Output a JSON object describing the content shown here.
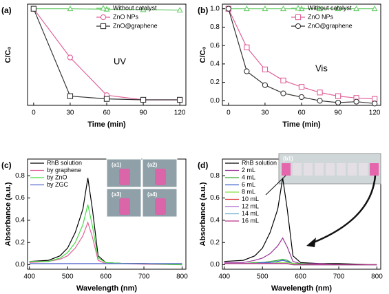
{
  "chart_data": [
    {
      "type": "line",
      "panel_label": "(a)",
      "xlabel": "Time (min)",
      "ylabel": "C/C₀",
      "x": [
        0,
        30,
        60,
        90,
        120
      ],
      "xlim": [
        -5,
        125
      ],
      "xticks": [
        0,
        30,
        60,
        90,
        120
      ],
      "ylim": [
        -0.05,
        1.05
      ],
      "legend": "upper right",
      "annotations": [
        "UV"
      ],
      "series": [
        {
          "name": "Without catalyst",
          "color": "#66cc66",
          "marker": "triangle",
          "values": [
            1.0,
            1.0,
            0.995,
            0.99,
            0.985
          ]
        },
        {
          "name": "ZnO NPs",
          "color": "#e0609a",
          "marker": "circle",
          "values": [
            1.0,
            0.47,
            0.06,
            0.01,
            0.01
          ]
        },
        {
          "name": "ZnO@graphene",
          "color": "#333333",
          "marker": "square",
          "values": [
            1.0,
            0.05,
            0.02,
            0.01,
            0.01
          ]
        }
      ]
    },
    {
      "type": "line",
      "panel_label": "(b)",
      "xlabel": "Time (min)",
      "ylabel": "C/C₀",
      "x": [
        0,
        15,
        30,
        45,
        60,
        75,
        90,
        105,
        120
      ],
      "xlim": [
        -5,
        125
      ],
      "xticks": [
        0,
        30,
        60,
        90,
        120
      ],
      "ylim": [
        -0.05,
        1.05
      ],
      "yticks": [
        {
          "value": 0,
          "label": "0.0"
        },
        0.2,
        0.4,
        0.6,
        0.8,
        {
          "value": 1,
          "label": "1.0"
        }
      ],
      "legend": "upper right",
      "annotations": [
        "Vis"
      ],
      "series": [
        {
          "name": "Without catalyst",
          "color": "#66cc66",
          "marker": "triangle",
          "values": [
            1.0,
            1.0,
            1.0,
            1.0,
            1.0,
            1.0,
            1.0,
            1.0,
            1.0
          ]
        },
        {
          "name": "ZnO NPs",
          "color": "#e0609a",
          "marker": "square",
          "values": [
            1.0,
            0.58,
            0.34,
            0.22,
            0.15,
            0.09,
            0.05,
            0.03,
            0.02
          ]
        },
        {
          "name": "ZnO@graphene",
          "color": "#333333",
          "marker": "circle",
          "values": [
            1.0,
            0.32,
            0.17,
            0.08,
            0.04,
            0.0,
            -0.02,
            -0.01,
            -0.03
          ]
        }
      ]
    },
    {
      "type": "line",
      "panel_label": "(c)",
      "xlabel": "Wavelength (nm)",
      "ylabel": "Absorbance (a.u.)",
      "x": [
        400,
        450,
        480,
        500,
        520,
        540,
        553,
        565,
        580,
        600,
        650,
        700,
        800
      ],
      "xlim": [
        395,
        810
      ],
      "xticks": [
        400,
        500,
        600,
        700,
        800
      ],
      "ylim": [
        -0.04,
        0.95
      ],
      "yticks": [
        {
          "value": 0,
          "label": "0.0"
        },
        0.2,
        0.4,
        0.6,
        0.8
      ],
      "legend": "upper left",
      "annotations": [
        "(a1)",
        "(a2)",
        "(a3)",
        "(a4)"
      ],
      "series": [
        {
          "name": "RhB solution",
          "color": "#000000",
          "values": [
            0.03,
            0.04,
            0.08,
            0.15,
            0.29,
            0.5,
            0.78,
            0.5,
            0.08,
            0.02,
            0.01,
            0.01,
            0.0
          ]
        },
        {
          "name": "by graphene",
          "color": "#e0609a",
          "values": [
            0.02,
            0.03,
            0.05,
            0.08,
            0.15,
            0.26,
            0.38,
            0.25,
            0.04,
            0.01,
            0.01,
            0.005,
            0.0
          ]
        },
        {
          "name": "by ZnO",
          "color": "#44dd44",
          "values": [
            0.03,
            0.03,
            0.06,
            0.11,
            0.2,
            0.36,
            0.54,
            0.35,
            0.06,
            0.02,
            0.01,
            0.01,
            0.0
          ]
        },
        {
          "name": "by ZGC",
          "color": "#5566cc",
          "values": [
            0.01,
            0.01,
            0.01,
            0.01,
            0.01,
            0.01,
            0.01,
            0.01,
            0.01,
            0.01,
            0.01,
            0.01,
            0.01
          ]
        }
      ]
    },
    {
      "type": "line",
      "panel_label": "(d)",
      "xlabel": "Wavelength (nm)",
      "ylabel": "Absorbance (a.u.)",
      "x": [
        400,
        450,
        480,
        500,
        520,
        540,
        553,
        565,
        580,
        600,
        650,
        700,
        800
      ],
      "xlim": [
        395,
        810
      ],
      "xticks": [
        400,
        500,
        600,
        700,
        800
      ],
      "ylim": [
        -0.04,
        0.95
      ],
      "yticks": [
        {
          "value": 0,
          "label": "0.0"
        },
        0.2,
        0.4,
        0.6,
        0.8
      ],
      "legend": "upper left",
      "annotations": [
        "(b1)"
      ],
      "series": [
        {
          "name": "RhB solution",
          "color": "#000000",
          "values": [
            0.03,
            0.04,
            0.08,
            0.15,
            0.29,
            0.5,
            0.78,
            0.5,
            0.08,
            0.02,
            0.01,
            0.01,
            0.0
          ]
        },
        {
          "name": "2 mL",
          "color": "#993399",
          "values": [
            0.02,
            0.02,
            0.04,
            0.06,
            0.1,
            0.17,
            0.24,
            0.16,
            0.03,
            0.01,
            0.01,
            0.0,
            0.0
          ]
        },
        {
          "name": "4 mL",
          "color": "#33aa33",
          "values": [
            0.01,
            0.01,
            0.02,
            0.02,
            0.03,
            0.04,
            0.05,
            0.04,
            0.01,
            0.01,
            0.0,
            0.0,
            0.0
          ]
        },
        {
          "name": "6 mL",
          "color": "#3355cc",
          "values": [
            0.01,
            0.01,
            0.01,
            0.02,
            0.02,
            0.03,
            0.04,
            0.03,
            0.01,
            0.0,
            0.0,
            0.0,
            0.0
          ]
        },
        {
          "name": "8 mL",
          "color": "#88dd44",
          "values": [
            0.01,
            0.01,
            0.01,
            0.01,
            0.01,
            0.02,
            0.02,
            0.02,
            0.01,
            0.0,
            0.0,
            0.0,
            0.0
          ]
        },
        {
          "name": "10 mL",
          "color": "#dd3333",
          "values": [
            0.01,
            0.01,
            0.01,
            0.01,
            0.01,
            0.01,
            0.01,
            0.01,
            0.0,
            0.0,
            0.0,
            0.0,
            0.0
          ]
        },
        {
          "name": "12 mL",
          "color": "#aa66cc",
          "values": [
            0.01,
            0.01,
            0.01,
            0.01,
            0.01,
            0.01,
            0.01,
            0.01,
            0.0,
            0.0,
            0.0,
            0.0,
            0.0
          ]
        },
        {
          "name": "14 mL",
          "color": "#66aacc",
          "values": [
            0.01,
            0.01,
            0.01,
            0.01,
            0.01,
            0.01,
            0.01,
            0.01,
            0.0,
            0.0,
            0.0,
            0.0,
            0.0
          ]
        },
        {
          "name": "16 mL",
          "color": "#bb3388",
          "values": [
            0.01,
            0.01,
            0.01,
            0.01,
            0.01,
            0.01,
            0.01,
            0.01,
            0.0,
            0.0,
            0.0,
            0.0,
            0.0
          ]
        }
      ]
    }
  ]
}
